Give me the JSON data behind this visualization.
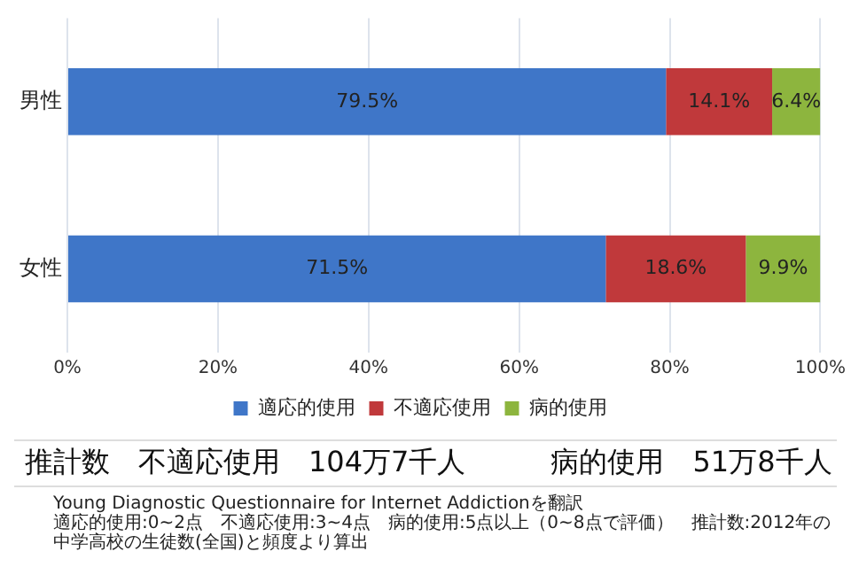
{
  "chart_data": {
    "type": "bar",
    "orientation": "horizontal",
    "stacked": true,
    "categories": [
      "男性",
      "女性"
    ],
    "series": [
      {
        "name": "適応的使用",
        "color": "#3f76c8",
        "values": [
          79.5,
          71.5
        ],
        "value_labels": [
          "79.5%",
          "71.5%"
        ]
      },
      {
        "name": "不適応使用",
        "color": "#c0393b",
        "values": [
          14.1,
          18.6
        ],
        "value_labels": [
          "14.1%",
          "18.6%"
        ]
      },
      {
        "name": "病的使用",
        "color": "#8db53e",
        "values": [
          6.4,
          9.9
        ],
        "value_labels": [
          "6.4%",
          "9.9%"
        ]
      }
    ],
    "xlim": [
      0,
      100
    ],
    "xticks": [
      {
        "value": 0,
        "label": "0%"
      },
      {
        "value": 20,
        "label": "20%"
      },
      {
        "value": 40,
        "label": "40%"
      },
      {
        "value": 60,
        "label": "60%"
      },
      {
        "value": 80,
        "label": "80%"
      },
      {
        "value": 100,
        "label": "100%"
      }
    ],
    "grid": "x",
    "legend": "bottom",
    "annotations": [
      "推計数　不適応使用　104万7千人　　　病的使用　51万8千人",
      "Young Diagnostic Questionnaire for Internet Addictionを翻訳",
      "適応的使用:0~2点　不適応使用:3~4点　病的使用:5点以上（0~8点で評価）　推計数:2012年の中学高校の生徒数(全国)と頻度より算出"
    ]
  }
}
